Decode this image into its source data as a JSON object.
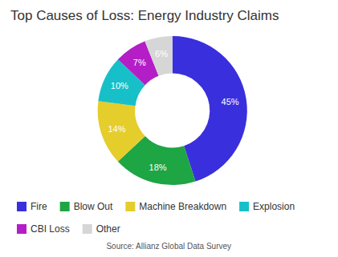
{
  "chart_data": {
    "type": "pie",
    "title": "Top Causes of Loss: Energy Industry Claims",
    "source": "Source: Allianz Global Data Survey",
    "categories": [
      "Fire",
      "Blow Out",
      "Machine Breakdown",
      "Explosion",
      "CBI Loss",
      "Other"
    ],
    "values": [
      45,
      18,
      14,
      10,
      7,
      6
    ],
    "value_labels": [
      "45%",
      "18%",
      "14%",
      "10%",
      "7%",
      "6%"
    ],
    "colors": [
      "#3a2fdc",
      "#1ea544",
      "#e5cd2c",
      "#17c0c8",
      "#b41ec6",
      "#d6d6d6"
    ],
    "data_labels": true,
    "legend": "bottom"
  }
}
